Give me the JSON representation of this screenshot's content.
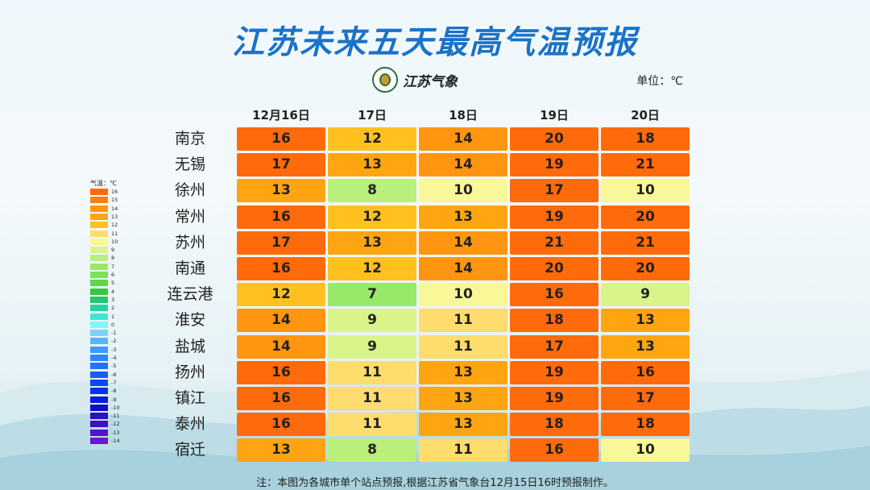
{
  "title": "江苏未来五天最高气温预报",
  "logo_text": "江苏气象",
  "unit": "单位：℃",
  "note": "注：本图为各城市单个站点预报,根据江苏省气象台12月15日16时预报制作。",
  "legend_title": "气温：℃",
  "legend": [
    {
      "label": "16",
      "color": "#ff6a0a"
    },
    {
      "label": "15",
      "color": "#ff7d0c"
    },
    {
      "label": "14",
      "color": "#ff9510"
    },
    {
      "label": "13",
      "color": "#ffa512"
    },
    {
      "label": "12",
      "color": "#ffc020"
    },
    {
      "label": "11",
      "color": "#ffdc6e"
    },
    {
      "label": "10",
      "color": "#f8f898"
    },
    {
      "label": "9",
      "color": "#d9f58a"
    },
    {
      "label": "8",
      "color": "#b9ef7a"
    },
    {
      "label": "7",
      "color": "#9ae86a"
    },
    {
      "label": "6",
      "color": "#7ee05a"
    },
    {
      "label": "5",
      "color": "#5ad84a"
    },
    {
      "label": "4",
      "color": "#36c83c"
    },
    {
      "label": "3",
      "color": "#22c76a"
    },
    {
      "label": "2",
      "color": "#20d6a0"
    },
    {
      "label": "1",
      "color": "#40e8d0"
    },
    {
      "label": "0",
      "color": "#7ff6f8"
    },
    {
      "label": "-1",
      "color": "#7fd0ff"
    },
    {
      "label": "-2",
      "color": "#5ab4ff"
    },
    {
      "label": "-3",
      "color": "#3c9cff"
    },
    {
      "label": "-4",
      "color": "#2e86ff"
    },
    {
      "label": "-5",
      "color": "#2272ff"
    },
    {
      "label": "-6",
      "color": "#1a5cf6"
    },
    {
      "label": "-7",
      "color": "#1446ee"
    },
    {
      "label": "-8",
      "color": "#0f30e4"
    },
    {
      "label": "-9",
      "color": "#0c1cd8"
    },
    {
      "label": "-10",
      "color": "#1010c8"
    },
    {
      "label": "-11",
      "color": "#2a10c0"
    },
    {
      "label": "-12",
      "color": "#4010c4"
    },
    {
      "label": "-13",
      "color": "#5414c8"
    },
    {
      "label": "-14",
      "color": "#6a18d0"
    }
  ],
  "cell_colors": {
    "7": "#9ae86a",
    "8": "#b9ef7a",
    "9": "#d9f58a",
    "10": "#f8f898",
    "11": "#ffdc6e",
    "12": "#ffc020",
    "13": "#ffa512",
    "14": "#ff9510",
    "high": "#ff6a0a"
  },
  "chart_data": {
    "type": "table",
    "title": "江苏未来五天最高气温预报",
    "columns": [
      "12月16日",
      "17日",
      "18日",
      "19日",
      "20日"
    ],
    "rows": [
      {
        "city": "南京",
        "values": [
          16,
          12,
          14,
          20,
          18
        ]
      },
      {
        "city": "无锡",
        "values": [
          17,
          13,
          14,
          19,
          21
        ]
      },
      {
        "city": "徐州",
        "values": [
          13,
          8,
          10,
          17,
          10
        ]
      },
      {
        "city": "常州",
        "values": [
          16,
          12,
          13,
          19,
          20
        ]
      },
      {
        "city": "苏州",
        "values": [
          17,
          13,
          14,
          21,
          21
        ]
      },
      {
        "city": "南通",
        "values": [
          16,
          12,
          14,
          20,
          20
        ]
      },
      {
        "city": "连云港",
        "values": [
          12,
          7,
          10,
          16,
          9
        ]
      },
      {
        "city": "淮安",
        "values": [
          14,
          9,
          11,
          18,
          13
        ]
      },
      {
        "city": "盐城",
        "values": [
          14,
          9,
          11,
          17,
          13
        ]
      },
      {
        "city": "扬州",
        "values": [
          16,
          11,
          13,
          19,
          16
        ]
      },
      {
        "city": "镇江",
        "values": [
          16,
          11,
          13,
          19,
          17
        ]
      },
      {
        "city": "泰州",
        "values": [
          16,
          11,
          13,
          18,
          18
        ]
      },
      {
        "city": "宿迁",
        "values": [
          13,
          8,
          11,
          16,
          10
        ]
      }
    ]
  }
}
